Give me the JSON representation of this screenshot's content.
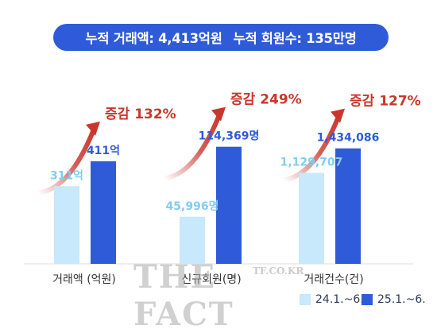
{
  "banner": {
    "total_amount": "누적 거래액: 4,413억원",
    "total_members": "누적 회원수: 135만명"
  },
  "watermark": {
    "main": "THE FACT",
    "small": "TF.CO.KR"
  },
  "legend": [
    {
      "label": "24.1.~6.",
      "color": "#c8e8fb"
    },
    {
      "label": "25.1.~6.",
      "color": "#2f5bd9"
    }
  ],
  "colors": {
    "prev": "#c8e8fb",
    "curr": "#2f5bd9",
    "prev_label": "#7fcdf3",
    "curr_label": "#2f5bd9",
    "growth": "#c9372c"
  },
  "chart_data": {
    "type": "bar",
    "categories": [
      "거래액 (억원)",
      "신규회원(명)",
      "거래건수(건)"
    ],
    "series": [
      {
        "name": "24.1.~6.",
        "values": [
          311,
          45996,
          1129707
        ],
        "labels": [
          "311억",
          "45,996명",
          "1,129,707"
        ]
      },
      {
        "name": "25.1.~6.",
        "values": [
          411,
          114369,
          1434086
        ],
        "labels": [
          "411억",
          "114,369명",
          "1,434,086"
        ]
      }
    ],
    "growth_labels": [
      "증감 132%",
      "증감 249%",
      "증감 127%"
    ]
  }
}
